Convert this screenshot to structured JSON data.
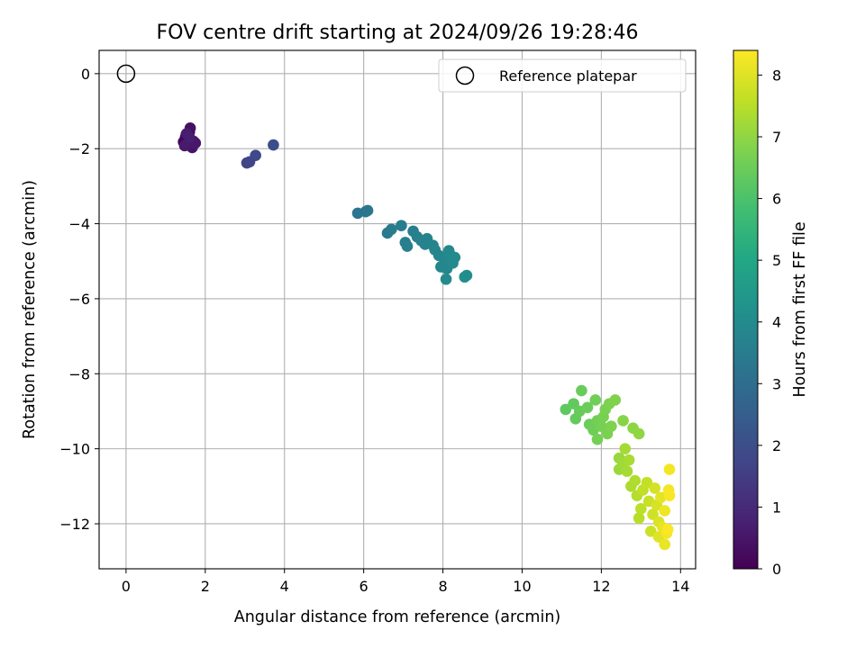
{
  "chart_data": {
    "type": "scatter",
    "title": "FOV centre drift starting at 2024/09/26 19:28:46",
    "xlabel": "Angular distance from reference (arcmin)",
    "ylabel": "Rotation from reference (arcmin)",
    "colorbar_label": "Hours from first FF file",
    "xlim": [
      -0.68,
      14.38
    ],
    "ylim": [
      -13.2,
      0.62
    ],
    "x_ticks": [
      0,
      2,
      4,
      6,
      8,
      10,
      12,
      14
    ],
    "y_ticks": [
      0,
      -2,
      -4,
      -6,
      -8,
      -10,
      -12
    ],
    "colorbar_range": [
      0,
      8.4
    ],
    "colorbar_ticks": [
      0,
      1,
      2,
      3,
      4,
      5,
      6,
      7,
      8
    ],
    "colormap": "viridis",
    "grid": true,
    "legend": {
      "position": "top-right",
      "entries": [
        "Reference platepar"
      ]
    },
    "reference_point": {
      "name": "Reference platepar",
      "x": 0,
      "y": 0
    },
    "points": [
      {
        "x": 1.45,
        "y": -1.82,
        "h": 0.05
      },
      {
        "x": 1.5,
        "y": -1.7,
        "h": 0.1
      },
      {
        "x": 1.52,
        "y": -1.62,
        "h": 0.15
      },
      {
        "x": 1.55,
        "y": -1.85,
        "h": 0.2
      },
      {
        "x": 1.58,
        "y": -1.75,
        "h": 0.25
      },
      {
        "x": 1.6,
        "y": -1.55,
        "h": 0.3
      },
      {
        "x": 1.62,
        "y": -1.45,
        "h": 0.35
      },
      {
        "x": 1.65,
        "y": -1.9,
        "h": 0.4
      },
      {
        "x": 1.67,
        "y": -1.97,
        "h": 0.45
      },
      {
        "x": 1.7,
        "y": -1.8,
        "h": 0.5
      },
      {
        "x": 1.75,
        "y": -1.85,
        "h": 0.55
      },
      {
        "x": 1.48,
        "y": -1.92,
        "h": 0.6
      },
      {
        "x": 1.53,
        "y": -1.6,
        "h": 0.65
      },
      {
        "x": 1.6,
        "y": -1.7,
        "h": 0.7
      },
      {
        "x": 3.05,
        "y": -2.38,
        "h": 1.7
      },
      {
        "x": 3.12,
        "y": -2.35,
        "h": 1.75
      },
      {
        "x": 3.27,
        "y": -2.18,
        "h": 1.8
      },
      {
        "x": 3.72,
        "y": -1.9,
        "h": 1.95
      },
      {
        "x": 5.85,
        "y": -3.72,
        "h": 3.25
      },
      {
        "x": 6.05,
        "y": -3.68,
        "h": 3.3
      },
      {
        "x": 6.1,
        "y": -3.65,
        "h": 3.32
      },
      {
        "x": 6.6,
        "y": -4.25,
        "h": 3.4
      },
      {
        "x": 6.7,
        "y": -4.15,
        "h": 3.45
      },
      {
        "x": 6.95,
        "y": -4.05,
        "h": 3.5
      },
      {
        "x": 7.05,
        "y": -4.5,
        "h": 3.55
      },
      {
        "x": 7.1,
        "y": -4.6,
        "h": 3.58
      },
      {
        "x": 7.25,
        "y": -4.2,
        "h": 3.6
      },
      {
        "x": 7.35,
        "y": -4.35,
        "h": 3.65
      },
      {
        "x": 7.45,
        "y": -4.45,
        "h": 3.68
      },
      {
        "x": 7.55,
        "y": -4.55,
        "h": 3.7
      },
      {
        "x": 7.6,
        "y": -4.4,
        "h": 3.72
      },
      {
        "x": 7.75,
        "y": -4.58,
        "h": 3.75
      },
      {
        "x": 7.8,
        "y": -4.7,
        "h": 3.78
      },
      {
        "x": 7.9,
        "y": -4.85,
        "h": 3.8
      },
      {
        "x": 7.95,
        "y": -5.15,
        "h": 3.82
      },
      {
        "x": 8.05,
        "y": -4.95,
        "h": 3.85
      },
      {
        "x": 8.1,
        "y": -5.2,
        "h": 3.88
      },
      {
        "x": 8.15,
        "y": -4.72,
        "h": 3.9
      },
      {
        "x": 8.18,
        "y": -4.82,
        "h": 3.92
      },
      {
        "x": 8.25,
        "y": -5.05,
        "h": 3.95
      },
      {
        "x": 8.3,
        "y": -4.9,
        "h": 3.97
      },
      {
        "x": 8.08,
        "y": -5.48,
        "h": 4.0
      },
      {
        "x": 8.55,
        "y": -5.42,
        "h": 4.05
      },
      {
        "x": 8.6,
        "y": -5.38,
        "h": 4.1
      },
      {
        "x": 11.1,
        "y": -8.95,
        "h": 6.3
      },
      {
        "x": 11.3,
        "y": -8.8,
        "h": 6.35
      },
      {
        "x": 11.35,
        "y": -9.2,
        "h": 6.4
      },
      {
        "x": 11.45,
        "y": -9.0,
        "h": 6.42
      },
      {
        "x": 11.5,
        "y": -8.45,
        "h": 6.45
      },
      {
        "x": 11.65,
        "y": -8.9,
        "h": 6.48
      },
      {
        "x": 11.7,
        "y": -9.35,
        "h": 6.5
      },
      {
        "x": 11.8,
        "y": -9.5,
        "h": 6.55
      },
      {
        "x": 11.85,
        "y": -8.7,
        "h": 6.58
      },
      {
        "x": 11.9,
        "y": -9.25,
        "h": 6.6
      },
      {
        "x": 11.9,
        "y": -9.75,
        "h": 6.62
      },
      {
        "x": 12.0,
        "y": -9.4,
        "h": 6.65
      },
      {
        "x": 12.05,
        "y": -9.15,
        "h": 6.68
      },
      {
        "x": 12.1,
        "y": -8.95,
        "h": 6.7
      },
      {
        "x": 12.15,
        "y": -9.6,
        "h": 6.72
      },
      {
        "x": 12.2,
        "y": -8.8,
        "h": 6.75
      },
      {
        "x": 12.25,
        "y": -9.4,
        "h": 6.78
      },
      {
        "x": 12.35,
        "y": -8.7,
        "h": 6.8
      },
      {
        "x": 12.55,
        "y": -9.25,
        "h": 6.9
      },
      {
        "x": 12.8,
        "y": -9.45,
        "h": 6.95
      },
      {
        "x": 12.95,
        "y": -9.6,
        "h": 7.0
      },
      {
        "x": 12.45,
        "y": -10.25,
        "h": 7.1
      },
      {
        "x": 12.45,
        "y": -10.55,
        "h": 7.15
      },
      {
        "x": 12.55,
        "y": -10.4,
        "h": 7.2
      },
      {
        "x": 12.6,
        "y": -10.0,
        "h": 7.25
      },
      {
        "x": 12.65,
        "y": -10.6,
        "h": 7.28
      },
      {
        "x": 12.7,
        "y": -10.3,
        "h": 7.3
      },
      {
        "x": 12.75,
        "y": -11.0,
        "h": 7.35
      },
      {
        "x": 12.85,
        "y": -10.85,
        "h": 7.4
      },
      {
        "x": 12.9,
        "y": -11.25,
        "h": 7.45
      },
      {
        "x": 12.95,
        "y": -11.85,
        "h": 7.5
      },
      {
        "x": 13.0,
        "y": -11.6,
        "h": 7.55
      },
      {
        "x": 13.05,
        "y": -11.1,
        "h": 7.6
      },
      {
        "x": 13.15,
        "y": -10.9,
        "h": 7.65
      },
      {
        "x": 13.2,
        "y": -11.4,
        "h": 7.7
      },
      {
        "x": 13.25,
        "y": -12.2,
        "h": 7.75
      },
      {
        "x": 13.3,
        "y": -11.75,
        "h": 7.8
      },
      {
        "x": 13.35,
        "y": -11.05,
        "h": 7.85
      },
      {
        "x": 13.4,
        "y": -11.5,
        "h": 7.9
      },
      {
        "x": 13.45,
        "y": -11.95,
        "h": 7.95
      },
      {
        "x": 13.45,
        "y": -12.35,
        "h": 8.0
      },
      {
        "x": 13.5,
        "y": -11.3,
        "h": 8.05
      },
      {
        "x": 13.55,
        "y": -12.1,
        "h": 8.1
      },
      {
        "x": 13.6,
        "y": -12.55,
        "h": 8.15
      },
      {
        "x": 13.6,
        "y": -11.65,
        "h": 8.2
      },
      {
        "x": 13.65,
        "y": -12.25,
        "h": 8.25
      },
      {
        "x": 13.7,
        "y": -11.1,
        "h": 8.28
      },
      {
        "x": 13.72,
        "y": -10.55,
        "h": 8.3
      },
      {
        "x": 13.72,
        "y": -11.25,
        "h": 8.35
      },
      {
        "x": 13.68,
        "y": -12.15,
        "h": 8.38
      }
    ]
  }
}
